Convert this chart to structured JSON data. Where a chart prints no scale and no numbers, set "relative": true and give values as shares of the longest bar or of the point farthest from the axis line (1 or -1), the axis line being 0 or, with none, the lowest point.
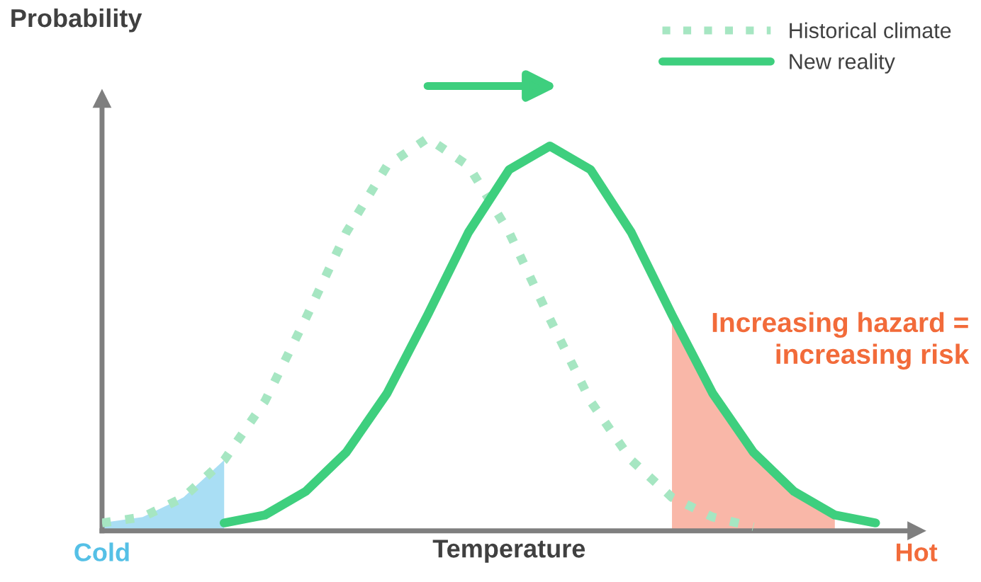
{
  "chart_data": {
    "type": "line",
    "relative": true,
    "ylabel": "Probability",
    "xlabel": "Temperature",
    "categories": [
      "Cold",
      null,
      null,
      null,
      null,
      null,
      null,
      null,
      null,
      null,
      null,
      null,
      null,
      null,
      null,
      null,
      null,
      null,
      null,
      null,
      "Hot"
    ],
    "series": [
      {
        "type": "area",
        "color": "#a9def4",
        "values": [
          0.02,
          0.035,
          0.085,
          0.18,
          null,
          null,
          null,
          null,
          null,
          null,
          null,
          null,
          null,
          null,
          null,
          null,
          null,
          null,
          null,
          null,
          null
        ]
      },
      {
        "type": "area",
        "color": "#f9b7a8",
        "values": [
          null,
          null,
          null,
          null,
          null,
          null,
          null,
          null,
          null,
          null,
          null,
          null,
          null,
          null,
          0.55,
          0.35,
          0.2,
          0.1,
          0.04,
          null,
          null
        ]
      },
      {
        "name": "Historical climate",
        "color": "#a6e6c2",
        "line_style": "dotted",
        "values": [
          0.02,
          0.035,
          0.085,
          0.18,
          0.33,
          0.54,
          0.76,
          0.93,
          1.0,
          0.93,
          0.76,
          0.54,
          0.33,
          0.18,
          0.085,
          0.035,
          0.01,
          null,
          null,
          null,
          null
        ]
      },
      {
        "name": "New reality",
        "color": "#3ecf7e",
        "line_style": "solid",
        "values": [
          null,
          null,
          null,
          0.02,
          0.04,
          0.1,
          0.2,
          0.35,
          0.55,
          0.76,
          0.92,
          0.98,
          0.92,
          0.76,
          0.55,
          0.35,
          0.2,
          0.1,
          0.04,
          0.02,
          null
        ]
      }
    ],
    "annotations": [
      "Increasing hazard =\nincreasing risk"
    ],
    "legend": "top right",
    "grid": false
  }
}
